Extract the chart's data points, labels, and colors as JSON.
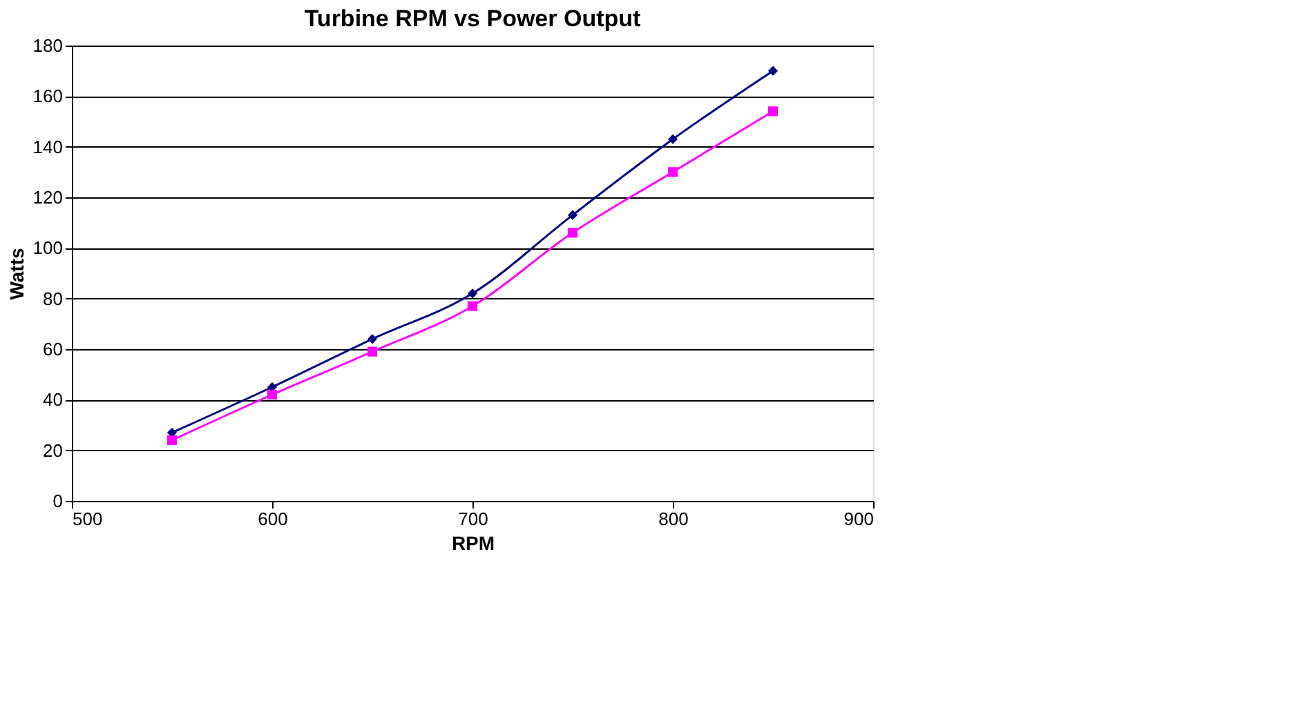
{
  "chart_data": {
    "type": "line",
    "title": "Turbine RPM vs Power Output",
    "xlabel": "RPM",
    "ylabel": "Watts",
    "x": [
      550,
      600,
      650,
      700,
      750,
      800,
      850
    ],
    "series": [
      {
        "color": "#000080",
        "marker": "diamond",
        "values": [
          27,
          45,
          64,
          82,
          113,
          143,
          170
        ]
      },
      {
        "color": "#ff00ff",
        "marker": "square",
        "values": [
          24,
          42,
          59,
          77,
          106,
          130,
          154
        ]
      }
    ],
    "xlim": [
      500,
      900
    ],
    "xticks": [
      500,
      600,
      700,
      800,
      900
    ],
    "ylim": [
      0,
      180
    ],
    "yticks": [
      0,
      20,
      40,
      60,
      80,
      100,
      120,
      140,
      160,
      180
    ],
    "grid": "y",
    "line_style": "solid"
  }
}
